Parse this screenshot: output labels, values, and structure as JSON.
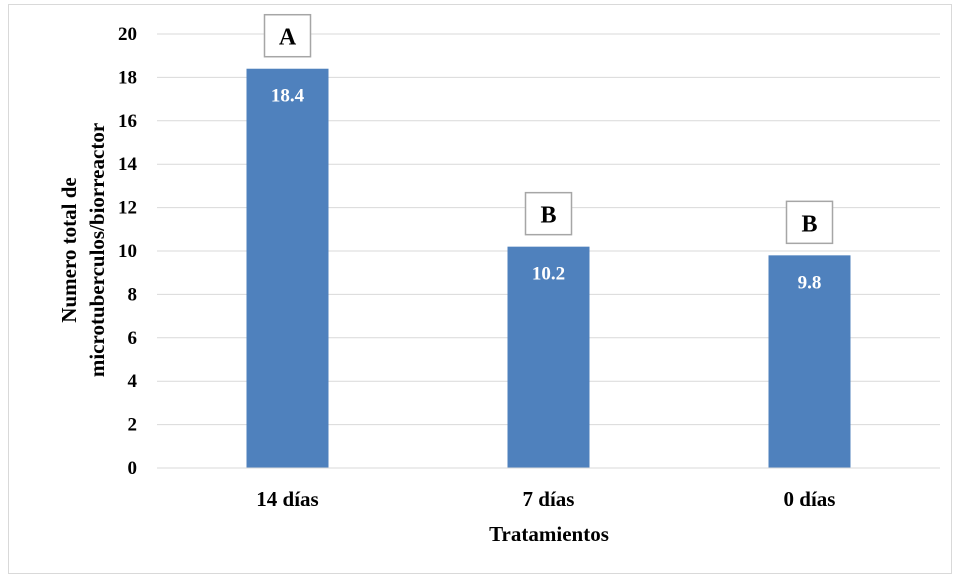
{
  "chart_data": {
    "type": "bar",
    "title": "",
    "xlabel": "Tratamientos",
    "ylabel_lines": [
      "Numero total de",
      "microtuberculos/biorreactor"
    ],
    "categories": [
      "14 días",
      "7 días",
      "0 días"
    ],
    "values": [
      18.4,
      10.2,
      9.8
    ],
    "value_labels": [
      "18.4",
      "10.2",
      "9.8"
    ],
    "significance_letters": [
      "A",
      "B",
      "B"
    ],
    "ylim": [
      0,
      20
    ],
    "yticks": [
      0,
      2,
      4,
      6,
      8,
      10,
      12,
      14,
      16,
      18,
      20
    ],
    "ytick_labels": [
      "0",
      "2",
      "4",
      "6",
      "8",
      "10",
      "12",
      "14",
      "16",
      "18",
      "20"
    ],
    "grid": true,
    "legend": "none",
    "bar_color": "#4f81bd",
    "grid_color": "#d9d9d9"
  }
}
